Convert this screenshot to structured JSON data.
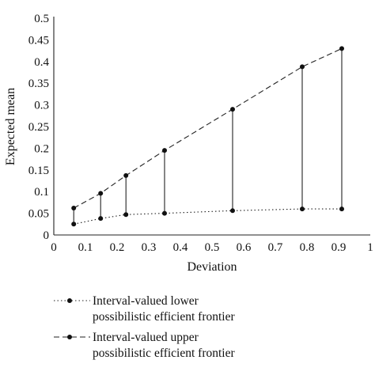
{
  "chart_data": {
    "type": "line",
    "xlabel": "Deviation",
    "ylabel": "Expected mean",
    "xlim": [
      0,
      1
    ],
    "ylim": [
      0,
      0.5
    ],
    "x_ticks": [
      "0",
      "0.1",
      "0.2",
      "0.3",
      "0.4",
      "0.5",
      "0.6",
      "0.7",
      "0.8",
      "0.9",
      "1"
    ],
    "y_ticks": [
      "0",
      "0.05",
      "0.1",
      "0.15",
      "0.2",
      "0.25",
      "0.3",
      "0.35",
      "0.4",
      "0.45",
      "0.5"
    ],
    "grid": false,
    "legend_position": "bottom",
    "series": [
      {
        "name_lines": [
          "Interval-valued lower",
          "possibilistic efficient frontier"
        ],
        "line_style": "dotted",
        "x": [
          0.063,
          0.148,
          0.228,
          0.35,
          0.565,
          0.785,
          0.91
        ],
        "y": [
          0.025,
          0.038,
          0.047,
          0.05,
          0.056,
          0.06,
          0.06
        ]
      },
      {
        "name_lines": [
          "Interval-valued upper",
          "possibilistic efficient frontier"
        ],
        "line_style": "dashed",
        "x": [
          0.063,
          0.148,
          0.228,
          0.35,
          0.565,
          0.785,
          0.91
        ],
        "y": [
          0.062,
          0.096,
          0.137,
          0.195,
          0.29,
          0.388,
          0.43
        ]
      }
    ]
  }
}
